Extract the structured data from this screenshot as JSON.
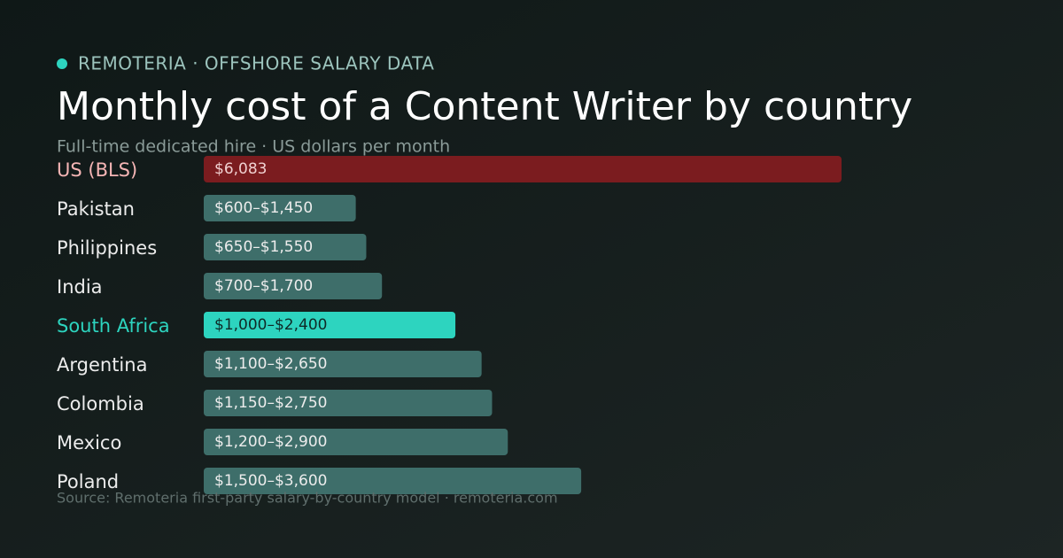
{
  "header": {
    "kicker": "REMOTERIA · OFFSHORE SALARY DATA",
    "source": "Source: Remoteria first-party salary-by-country model · remoteria.com"
  },
  "chart_data": {
    "type": "range-bar",
    "title": "Monthly cost of a Content Writer by country",
    "subtitle": "Full-time dedicated hire · US dollars per month",
    "categories": [
      "US (BLS)",
      "Pakistan",
      "Philippines",
      "India",
      "South Africa",
      "Argentina",
      "Colombia",
      "Mexico",
      "Poland"
    ],
    "low": [
      null,
      600,
      650,
      700,
      1000,
      1100,
      1150,
      1200,
      1500
    ],
    "high": [
      6083,
      1450,
      1550,
      1700,
      2400,
      2650,
      2750,
      2900,
      3600
    ],
    "low_labels": [
      null,
      "$600",
      "$650",
      "$700",
      "$1,000",
      "$1,100",
      "$1,150",
      "$1,200",
      "$1,500"
    ],
    "high_labels": [
      "$6,083",
      "$1,450",
      "$1,550",
      "$1,700",
      "$2,400",
      "$2,650",
      "$2,750",
      "$2,900",
      "$3,600"
    ],
    "range_separator": "–",
    "xlim": [
      0,
      6083
    ],
    "colors": [
      "#7b1c1f",
      "#3e6e6a",
      "#3e6e6a",
      "#3e6e6a",
      "#2dd4bf",
      "#3e6e6a",
      "#3e6e6a",
      "#3e6e6a",
      "#3e6e6a"
    ],
    "category_colors": [
      "#f5b5b5",
      "#ececec",
      "#ececec",
      "#ececec",
      "#2dd4bf",
      "#ececec",
      "#ececec",
      "#ececec",
      "#ececec"
    ],
    "value_label_colors": [
      "#f0d0d0",
      "#ececec",
      "#ececec",
      "#ececec",
      "#0f2a27",
      "#ececec",
      "#ececec",
      "#ececec",
      "#ececec"
    ]
  }
}
